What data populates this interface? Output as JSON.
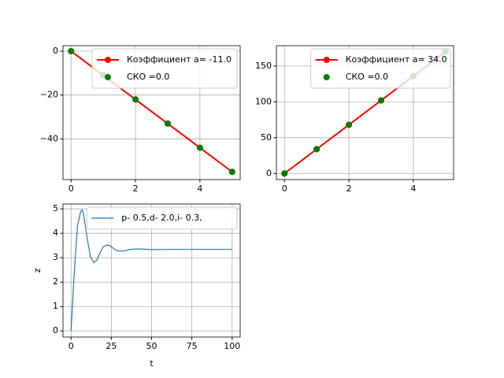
{
  "chart_data": [
    {
      "type": "line",
      "x": [
        0,
        1,
        2,
        3,
        4,
        5
      ],
      "xlim": [
        -0.25,
        5.25
      ],
      "ylim": [
        -58.5,
        2.5
      ],
      "xticks": [
        0,
        2,
        4
      ],
      "yticks": [
        0,
        {
          "value": -20,
          "label": "−20"
        },
        {
          "value": -40,
          "label": "−40"
        }
      ],
      "grid": true,
      "legend": "upper right",
      "series": [
        {
          "name": "Коэффициент a= -11.0",
          "color": "red",
          "style": "line-marker",
          "values": [
            0,
            -11,
            -22,
            -33,
            -44,
            -55
          ]
        },
        {
          "name": "СКО =0.0",
          "color": "green",
          "style": "marker",
          "values": [
            0,
            -11,
            -22,
            -33,
            -44,
            -55
          ]
        }
      ]
    },
    {
      "type": "line",
      "x": [
        0,
        1,
        2,
        3,
        4,
        5
      ],
      "xlim": [
        -0.25,
        5.25
      ],
      "ylim": [
        -8.5,
        178.5
      ],
      "xticks": [
        0,
        2,
        4
      ],
      "yticks": [
        0,
        50,
        100,
        150
      ],
      "grid": true,
      "legend": "upper right",
      "series": [
        {
          "name": "Коэффициент a= 34.0",
          "color": "red",
          "style": "line-marker",
          "values": [
            0,
            34,
            68,
            102,
            136,
            170
          ]
        },
        {
          "name": "СКО =0.0",
          "color": "green",
          "style": "marker",
          "values": [
            0,
            34,
            68,
            102,
            136,
            170
          ]
        }
      ]
    },
    {
      "type": "line",
      "x": [
        0,
        2,
        4,
        6,
        7,
        8,
        10,
        12,
        14,
        16,
        18,
        20,
        22,
        24,
        26,
        28,
        30,
        33,
        36,
        40,
        45,
        50,
        60,
        70,
        80,
        90,
        100
      ],
      "xlim": [
        -5,
        105
      ],
      "ylim": [
        -0.25,
        5.2
      ],
      "xticks": [
        0,
        25,
        50,
        75,
        100
      ],
      "yticks": [
        0,
        1,
        2,
        3,
        4,
        5
      ],
      "grid": true,
      "legend": "upper right",
      "x_label": "t",
      "y_label": "z",
      "series": [
        {
          "name": "p- 0.5,d- 2.0,i- 0.3,",
          "color": "#1f77b4",
          "style": "line",
          "values": [
            0,
            2.4,
            4.3,
            4.9,
            4.95,
            4.7,
            3.8,
            3.05,
            2.8,
            2.9,
            3.2,
            3.45,
            3.52,
            3.5,
            3.4,
            3.3,
            3.27,
            3.28,
            3.33,
            3.36,
            3.35,
            3.33,
            3.34,
            3.34,
            3.34,
            3.34,
            3.34
          ]
        }
      ]
    }
  ]
}
